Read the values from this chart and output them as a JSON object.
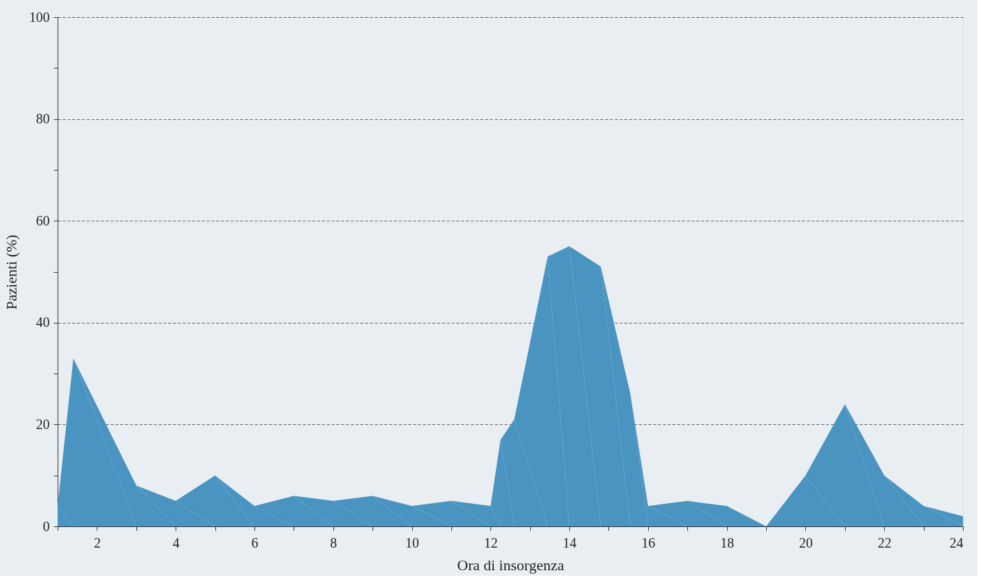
{
  "chart_data": {
    "type": "area",
    "xlabel": "Ora di insorgenza",
    "ylabel": "Pazienti (%)",
    "x": [
      1,
      1.4,
      3,
      4,
      5,
      6,
      7,
      8,
      9,
      10,
      11,
      12,
      12.25,
      12.6,
      13.45,
      14,
      14.8,
      15.55,
      16,
      17,
      18,
      19,
      20,
      21,
      22,
      23,
      24
    ],
    "series": [
      {
        "color": "#4a94c2",
        "values": [
          4,
          33,
          8,
          5,
          10,
          4,
          6,
          5,
          6,
          4,
          5,
          4,
          17,
          21,
          53,
          55,
          51,
          26,
          4,
          5,
          4,
          0,
          10,
          24,
          10,
          4,
          2
        ]
      }
    ],
    "xlim": [
      1,
      24
    ],
    "xticks": [
      {
        "value": 1,
        "label": null
      },
      2,
      {
        "value": 3,
        "label": null
      },
      4,
      {
        "value": 5,
        "label": null
      },
      6,
      {
        "value": 7,
        "label": null
      },
      8,
      {
        "value": 9,
        "label": null
      },
      10,
      {
        "value": 11,
        "label": null
      },
      12,
      {
        "value": 13,
        "label": null
      },
      14,
      {
        "value": 15,
        "label": null
      },
      16,
      {
        "value": 17,
        "label": null
      },
      18,
      {
        "value": 19,
        "label": null
      },
      20,
      {
        "value": 21,
        "label": null
      },
      22,
      {
        "value": 23,
        "label": null
      },
      24
    ],
    "ylim": [
      0,
      100
    ],
    "yticks": [
      0,
      {
        "value": 10,
        "label": null
      },
      20,
      {
        "value": 30,
        "label": null
      },
      40,
      {
        "value": 50,
        "label": null
      },
      60,
      {
        "value": 70,
        "label": null
      },
      80,
      {
        "value": 90,
        "label": null
      },
      100
    ],
    "grid": "y",
    "line_style": "dashed"
  }
}
